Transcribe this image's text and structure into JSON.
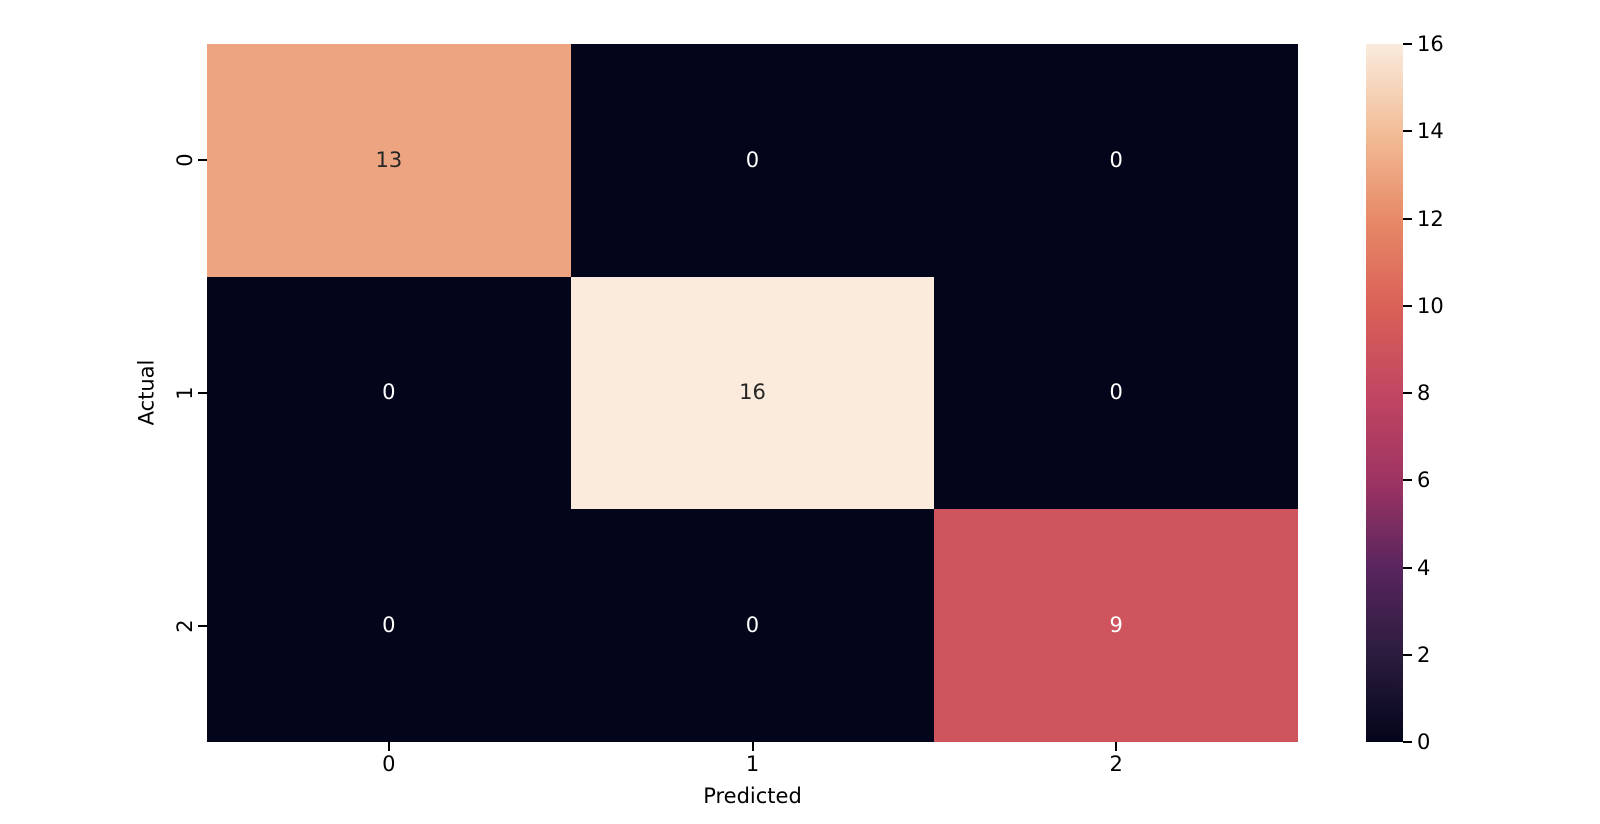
{
  "chart_data": {
    "type": "heatmap",
    "title": "",
    "xlabel": "Predicted",
    "ylabel": "Actual",
    "x_tick_labels": [
      "0",
      "1",
      "2"
    ],
    "y_tick_labels": [
      "0",
      "1",
      "2"
    ],
    "matrix": [
      [
        13,
        0,
        0
      ],
      [
        0,
        16,
        0
      ],
      [
        0,
        0,
        9
      ]
    ],
    "vmin": 0,
    "vmax": 16,
    "grid": false,
    "colorbar": {
      "position": "right",
      "tick_labels": [
        "0",
        "2",
        "4",
        "6",
        "8",
        "10",
        "12",
        "14",
        "16"
      ],
      "tick_values": [
        0,
        2,
        4,
        6,
        8,
        10,
        12,
        14,
        16
      ]
    },
    "colormap": {
      "name": "rocket",
      "stops": [
        {
          "value": 0,
          "hex": "#03051A"
        },
        {
          "value": 2,
          "hex": "#2B1C3E"
        },
        {
          "value": 4,
          "hex": "#59255E"
        },
        {
          "value": 6,
          "hex": "#9E3462"
        },
        {
          "value": 8,
          "hex": "#C24662"
        },
        {
          "value": 10,
          "hex": "#DA6157"
        },
        {
          "value": 12,
          "hex": "#E78A67"
        },
        {
          "value": 14,
          "hex": "#F2BE98"
        },
        {
          "value": 16,
          "hex": "#FAEBDD"
        }
      ]
    },
    "annotation_text_colors": {
      "on_light": "#262626",
      "on_dark": "#FFFFFF"
    },
    "axis_text_color": "#000000",
    "background_color": "#FFFFFF"
  }
}
